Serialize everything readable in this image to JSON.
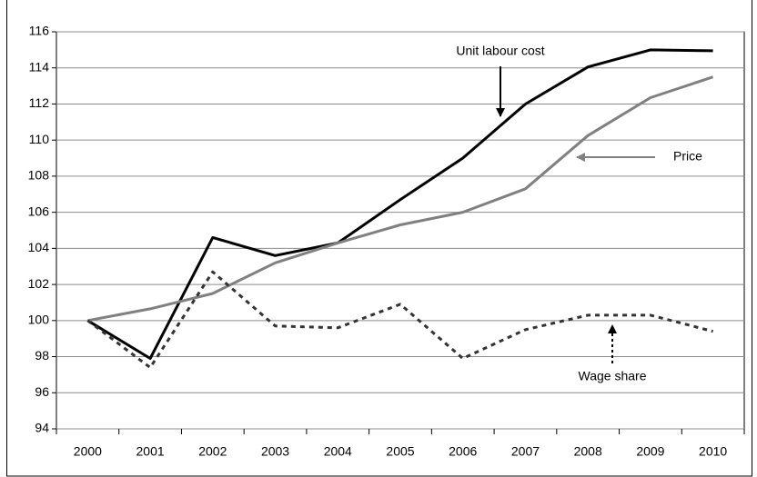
{
  "chart_data": {
    "type": "line",
    "categories": [
      "2000",
      "2001",
      "2002",
      "2003",
      "2004",
      "2005",
      "2006",
      "2007",
      "2008",
      "2009",
      "2010"
    ],
    "series": [
      {
        "name": "Unit labour cost",
        "color": "#000000",
        "dash": "solid",
        "values": [
          100,
          97.9,
          104.6,
          103.6,
          104.3,
          106.7,
          109.0,
          112.0,
          114.05,
          115.0,
          114.95
        ]
      },
      {
        "name": "Price",
        "color": "#808080",
        "dash": "solid",
        "values": [
          100,
          100.65,
          101.5,
          103.2,
          104.3,
          105.3,
          106.0,
          107.3,
          110.25,
          112.35,
          113.5
        ]
      },
      {
        "name": "Wage share",
        "color": "#333333",
        "dash": "dotted",
        "values": [
          100,
          97.4,
          102.7,
          99.7,
          99.6,
          100.9,
          97.9,
          99.5,
          100.3,
          100.3,
          99.4
        ]
      }
    ],
    "ylim": [
      94,
      116
    ],
    "yticks": [
      94,
      96,
      98,
      100,
      102,
      104,
      106,
      108,
      110,
      112,
      114,
      116
    ],
    "grid": true
  }
}
